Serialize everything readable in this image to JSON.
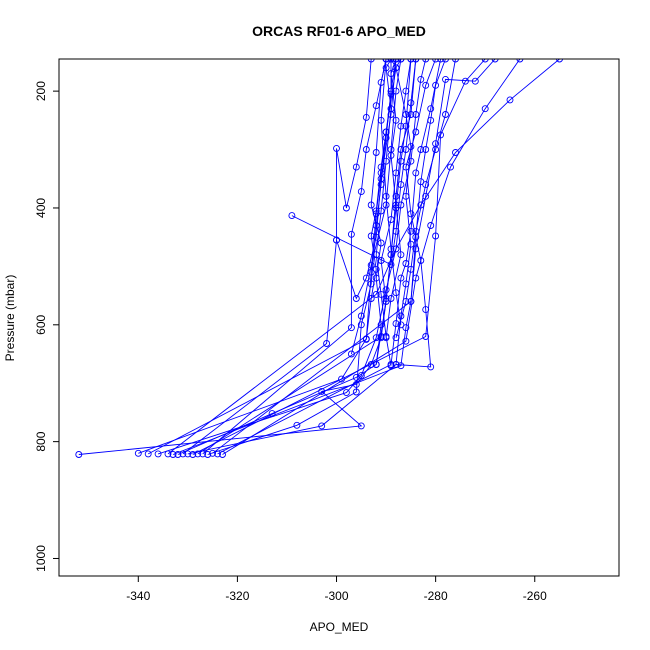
{
  "chart_data": {
    "type": "line",
    "title": "ORCAS RF01-6 APO_MED",
    "xlabel": "APO_MED",
    "ylabel": "Pressure (mbar)",
    "xlim": [
      -356,
      -243
    ],
    "ylim": [
      1030,
      145
    ],
    "y_reversed": true,
    "x_ticks": [
      -340,
      -320,
      -300,
      -280,
      -260
    ],
    "y_ticks": [
      200,
      400,
      600,
      800,
      1000
    ],
    "grid": false,
    "legend": "none",
    "series_color": "#0000ff",
    "series": [
      {
        "values": [
          {
            "x": -352,
            "y": 822
          },
          {
            "x": -295,
            "y": 773
          },
          {
            "x": -303,
            "y": 714
          },
          {
            "x": -296,
            "y": 702
          },
          {
            "x": -293,
            "y": 668
          },
          {
            "x": -291,
            "y": 622
          },
          {
            "x": -290,
            "y": 560
          },
          {
            "x": -291,
            "y": 490
          },
          {
            "x": -289,
            "y": 420
          },
          {
            "x": -288,
            "y": 340
          },
          {
            "x": -287,
            "y": 260
          },
          {
            "x": -286,
            "y": 200
          },
          {
            "x": -285,
            "y": 145
          }
        ]
      },
      {
        "values": [
          {
            "x": -340,
            "y": 820
          },
          {
            "x": -299,
            "y": 693
          },
          {
            "x": -294,
            "y": 624
          },
          {
            "x": -293,
            "y": 555
          },
          {
            "x": -292,
            "y": 505
          },
          {
            "x": -293,
            "y": 448
          },
          {
            "x": -292,
            "y": 405
          },
          {
            "x": -291,
            "y": 330
          },
          {
            "x": -290,
            "y": 270
          },
          {
            "x": -289,
            "y": 205
          },
          {
            "x": -289,
            "y": 145
          }
        ]
      },
      {
        "values": [
          {
            "x": -336,
            "y": 821
          },
          {
            "x": -298,
            "y": 716
          },
          {
            "x": -295,
            "y": 687
          },
          {
            "x": -292,
            "y": 622
          },
          {
            "x": -290,
            "y": 540
          },
          {
            "x": -288,
            "y": 470
          },
          {
            "x": -287,
            "y": 395
          },
          {
            "x": -285,
            "y": 320
          },
          {
            "x": -284,
            "y": 240
          },
          {
            "x": -283,
            "y": 180
          },
          {
            "x": -282,
            "y": 145
          }
        ]
      },
      {
        "values": [
          {
            "x": -331,
            "y": 821
          },
          {
            "x": -302,
            "y": 632
          },
          {
            "x": -300,
            "y": 455
          },
          {
            "x": -300,
            "y": 298
          },
          {
            "x": -298,
            "y": 400
          },
          {
            "x": -296,
            "y": 330
          },
          {
            "x": -294,
            "y": 245
          },
          {
            "x": -293,
            "y": 145
          }
        ]
      },
      {
        "values": [
          {
            "x": -327,
            "y": 821
          },
          {
            "x": -297,
            "y": 605
          },
          {
            "x": -297,
            "y": 445
          },
          {
            "x": -295,
            "y": 372
          },
          {
            "x": -294,
            "y": 300
          },
          {
            "x": -292,
            "y": 225
          },
          {
            "x": -290,
            "y": 145
          }
        ]
      },
      {
        "values": [
          {
            "x": -324,
            "y": 821
          },
          {
            "x": -289,
            "y": 668
          },
          {
            "x": -288,
            "y": 598
          },
          {
            "x": -287,
            "y": 520
          },
          {
            "x": -286,
            "y": 495
          },
          {
            "x": -285,
            "y": 440
          },
          {
            "x": -284,
            "y": 340
          },
          {
            "x": -283,
            "y": 300
          },
          {
            "x": -281,
            "y": 230
          },
          {
            "x": -279,
            "y": 145
          }
        ]
      },
      {
        "values": [
          {
            "x": -332,
            "y": 822
          },
          {
            "x": -313,
            "y": 752
          },
          {
            "x": -296,
            "y": 690
          },
          {
            "x": -292,
            "y": 668
          },
          {
            "x": -290,
            "y": 560
          },
          {
            "x": -289,
            "y": 480
          },
          {
            "x": -288,
            "y": 380
          },
          {
            "x": -287,
            "y": 300
          },
          {
            "x": -285,
            "y": 240
          },
          {
            "x": -284,
            "y": 145
          }
        ]
      },
      {
        "values": [
          {
            "x": -326,
            "y": 822
          },
          {
            "x": -308,
            "y": 772
          },
          {
            "x": -296,
            "y": 715
          },
          {
            "x": -295,
            "y": 600
          },
          {
            "x": -293,
            "y": 530
          },
          {
            "x": -292,
            "y": 430
          },
          {
            "x": -291,
            "y": 360
          },
          {
            "x": -290,
            "y": 280
          },
          {
            "x": -289,
            "y": 200
          },
          {
            "x": -288,
            "y": 145
          }
        ]
      },
      {
        "values": [
          {
            "x": -330,
            "y": 821
          },
          {
            "x": -303,
            "y": 773
          },
          {
            "x": -288,
            "y": 668
          },
          {
            "x": -281,
            "y": 672
          },
          {
            "x": -282,
            "y": 574
          },
          {
            "x": -283,
            "y": 490
          },
          {
            "x": -285,
            "y": 410
          },
          {
            "x": -286,
            "y": 330
          },
          {
            "x": -284,
            "y": 270
          },
          {
            "x": -282,
            "y": 190
          },
          {
            "x": -280,
            "y": 145
          }
        ]
      },
      {
        "values": [
          {
            "x": -333,
            "y": 822
          },
          {
            "x": -287,
            "y": 670
          },
          {
            "x": -286,
            "y": 605
          },
          {
            "x": -285,
            "y": 560
          },
          {
            "x": -284,
            "y": 450
          },
          {
            "x": -283,
            "y": 355
          },
          {
            "x": -282,
            "y": 300
          },
          {
            "x": -281,
            "y": 250
          },
          {
            "x": -280,
            "y": 190
          },
          {
            "x": -278,
            "y": 145
          }
        ]
      },
      {
        "values": [
          {
            "x": -328,
            "y": 821
          },
          {
            "x": -291,
            "y": 620
          },
          {
            "x": -290,
            "y": 555
          },
          {
            "x": -289,
            "y": 480
          },
          {
            "x": -288,
            "y": 400
          },
          {
            "x": -287,
            "y": 320
          },
          {
            "x": -286,
            "y": 260
          },
          {
            "x": -285,
            "y": 145
          }
        ]
      },
      {
        "values": [
          {
            "x": -338,
            "y": 821
          },
          {
            "x": -294,
            "y": 625
          },
          {
            "x": -293,
            "y": 510
          },
          {
            "x": -292,
            "y": 410
          },
          {
            "x": -291,
            "y": 340
          },
          {
            "x": -290,
            "y": 270
          },
          {
            "x": -288,
            "y": 160
          },
          {
            "x": -287,
            "y": 145
          }
        ]
      },
      {
        "values": [
          {
            "x": -329,
            "y": 822
          },
          {
            "x": -282,
            "y": 620
          },
          {
            "x": -280,
            "y": 448
          },
          {
            "x": -279,
            "y": 275
          },
          {
            "x": -274,
            "y": 183
          },
          {
            "x": -270,
            "y": 145
          }
        ]
      },
      {
        "values": [
          {
            "x": -325,
            "y": 820
          },
          {
            "x": -285,
            "y": 560
          },
          {
            "x": -284,
            "y": 470
          },
          {
            "x": -282,
            "y": 380
          },
          {
            "x": -280,
            "y": 290
          },
          {
            "x": -278,
            "y": 180
          },
          {
            "x": -272,
            "y": 183
          },
          {
            "x": -268,
            "y": 145
          }
        ]
      },
      {
        "values": [
          {
            "x": -323,
            "y": 822
          },
          {
            "x": -286,
            "y": 628
          },
          {
            "x": -284,
            "y": 520
          },
          {
            "x": -281,
            "y": 430
          },
          {
            "x": -277,
            "y": 330
          },
          {
            "x": -270,
            "y": 230
          },
          {
            "x": -263,
            "y": 145
          }
        ]
      },
      {
        "values": [
          {
            "x": -334,
            "y": 821
          },
          {
            "x": -292,
            "y": 548
          },
          {
            "x": -288,
            "y": 470
          },
          {
            "x": -283,
            "y": 395
          },
          {
            "x": -276,
            "y": 305
          },
          {
            "x": -265,
            "y": 215
          },
          {
            "x": -255,
            "y": 145
          }
        ]
      },
      {
        "values": [
          {
            "x": -309,
            "y": 413
          },
          {
            "x": -289,
            "y": 497
          },
          {
            "x": -288,
            "y": 440
          },
          {
            "x": -287,
            "y": 360
          },
          {
            "x": -286,
            "y": 300
          },
          {
            "x": -285,
            "y": 220
          },
          {
            "x": -284,
            "y": 145
          }
        ]
      },
      {
        "values": [
          {
            "x": -300,
            "y": 455
          },
          {
            "x": -296,
            "y": 555
          },
          {
            "x": -294,
            "y": 520
          },
          {
            "x": -292,
            "y": 450
          },
          {
            "x": -291,
            "y": 350
          },
          {
            "x": -289,
            "y": 240
          },
          {
            "x": -288,
            "y": 145
          }
        ]
      },
      {
        "values": [
          {
            "x": -297,
            "y": 650
          },
          {
            "x": -295,
            "y": 585
          },
          {
            "x": -293,
            "y": 498
          },
          {
            "x": -290,
            "y": 395
          },
          {
            "x": -289,
            "y": 300
          },
          {
            "x": -288,
            "y": 200
          },
          {
            "x": -287,
            "y": 145
          }
        ]
      },
      {
        "values": [
          {
            "x": -289,
            "y": 670
          },
          {
            "x": -290,
            "y": 620
          },
          {
            "x": -291,
            "y": 548
          },
          {
            "x": -292,
            "y": 480
          },
          {
            "x": -291,
            "y": 405
          },
          {
            "x": -290,
            "y": 320
          },
          {
            "x": -289,
            "y": 230
          },
          {
            "x": -290,
            "y": 160
          },
          {
            "x": -289,
            "y": 145
          }
        ]
      },
      {
        "values": [
          {
            "x": -288,
            "y": 668
          },
          {
            "x": -287,
            "y": 585
          },
          {
            "x": -286,
            "y": 530
          },
          {
            "x": -285,
            "y": 462
          },
          {
            "x": -286,
            "y": 380
          },
          {
            "x": -285,
            "y": 295
          },
          {
            "x": -286,
            "y": 240
          },
          {
            "x": -288,
            "y": 160
          },
          {
            "x": -289,
            "y": 145
          }
        ]
      },
      {
        "values": [
          {
            "x": -292,
            "y": 668
          },
          {
            "x": -291,
            "y": 600
          },
          {
            "x": -292,
            "y": 520
          },
          {
            "x": -291,
            "y": 460
          },
          {
            "x": -293,
            "y": 395
          },
          {
            "x": -292,
            "y": 305
          },
          {
            "x": -291,
            "y": 185
          },
          {
            "x": -290,
            "y": 145
          }
        ]
      },
      {
        "values": [
          {
            "x": -290,
            "y": 622
          },
          {
            "x": -289,
            "y": 555
          },
          {
            "x": -287,
            "y": 480
          },
          {
            "x": -288,
            "y": 395
          },
          {
            "x": -289,
            "y": 310
          },
          {
            "x": -288,
            "y": 250
          },
          {
            "x": -289,
            "y": 170
          },
          {
            "x": -288,
            "y": 145
          }
        ]
      },
      {
        "values": [
          {
            "x": -288,
            "y": 622
          },
          {
            "x": -286,
            "y": 560
          },
          {
            "x": -285,
            "y": 505
          },
          {
            "x": -284,
            "y": 440
          },
          {
            "x": -282,
            "y": 360
          },
          {
            "x": -280,
            "y": 300
          },
          {
            "x": -278,
            "y": 240
          },
          {
            "x": -276,
            "y": 145
          }
        ]
      },
      {
        "values": [
          {
            "x": -287,
            "y": 600
          },
          {
            "x": -288,
            "y": 545
          },
          {
            "x": -289,
            "y": 470
          },
          {
            "x": -290,
            "y": 380
          },
          {
            "x": -291,
            "y": 250
          },
          {
            "x": -290,
            "y": 145
          }
        ]
      }
    ]
  }
}
